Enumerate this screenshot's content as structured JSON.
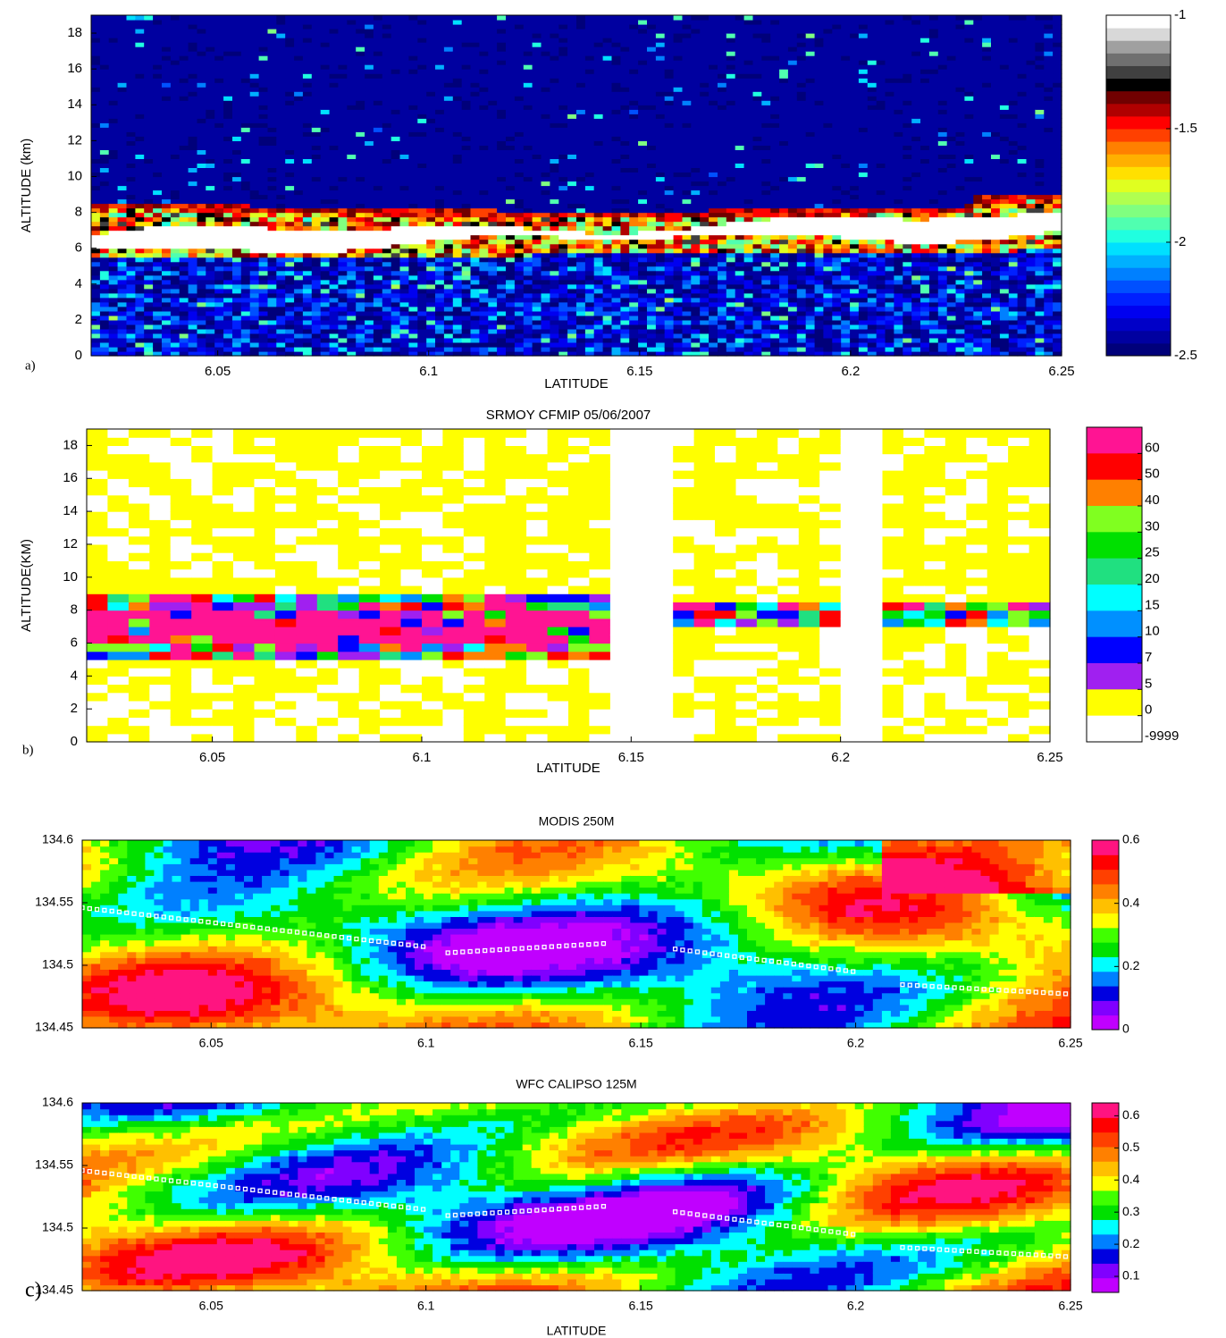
{
  "chart_data": [
    {
      "type": "heatmap",
      "panel_label": "a)",
      "xlabel": "LATITUDE",
      "ylabel": "ALTITUDE (km)",
      "xlim": [
        6.02,
        6.25
      ],
      "xticks": [
        6.05,
        6.1,
        6.15,
        6.2,
        6.25
      ],
      "ylim": [
        0,
        19
      ],
      "yticks": [
        0,
        2,
        4,
        6,
        8,
        10,
        12,
        14,
        16,
        18
      ],
      "colorbar": {
        "clim": [
          -2.5,
          -1
        ],
        "ticks": [
          -1,
          -1.5,
          -2,
          -2.5
        ],
        "colors": [
          "#00007a",
          "#0000a0",
          "#0000c8",
          "#0000f0",
          "#0020ff",
          "#0050ff",
          "#0080ff",
          "#00b0ff",
          "#00e0ff",
          "#20ffe0",
          "#50ffb0",
          "#80ff80",
          "#b0ff50",
          "#e0ff20",
          "#ffe000",
          "#ffb000",
          "#ff8000",
          "#ff4000",
          "#ff0000",
          "#b00000",
          "#700000",
          "#000000",
          "#404040",
          "#707070",
          "#a0a0a0",
          "#d8d8d8",
          "#ffffff"
        ]
      }
    },
    {
      "type": "heatmap",
      "title": "SRMOY CFMIP 05/06/2007",
      "panel_label": "b)",
      "xlabel": "LATITUDE",
      "ylabel": "ALTITUDE(KM)",
      "xlim": [
        6.02,
        6.25
      ],
      "xticks": [
        6.05,
        6.1,
        6.15,
        6.2,
        6.25
      ],
      "ylim": [
        0,
        19
      ],
      "yticks": [
        0,
        2,
        4,
        6,
        8,
        10,
        12,
        14,
        16,
        18
      ],
      "colorbar": {
        "levels": [
          60,
          50,
          40,
          30,
          25,
          20,
          15,
          10,
          7,
          5,
          0,
          -9999
        ],
        "colors": [
          "#ff1493",
          "#ff0000",
          "#ff8000",
          "#80ff20",
          "#00e000",
          "#20e080",
          "#00ffff",
          "#0090ff",
          "#0000ff",
          "#a020f0",
          "#ffff00",
          "#ffffff"
        ]
      }
    },
    {
      "type": "heatmap",
      "title": "MODIS 250M",
      "xlim": [
        6.02,
        6.25
      ],
      "xticks": [
        6.05,
        6.1,
        6.15,
        6.2,
        6.25
      ],
      "ylim": [
        134.45,
        134.6
      ],
      "yticks": [
        134.45,
        134.5,
        134.55,
        134.6
      ],
      "colorbar": {
        "clim": [
          0,
          0.6
        ],
        "ticks": [
          0,
          0.2,
          0.4,
          0.6
        ],
        "colors": [
          "#c000ff",
          "#8000ff",
          "#0000e0",
          "#0080ff",
          "#00ffff",
          "#00e000",
          "#40ff00",
          "#ffff00",
          "#ffc000",
          "#ff8000",
          "#ff4000",
          "#ff0000",
          "#ff1480"
        ]
      }
    },
    {
      "type": "heatmap",
      "title": "WFC CALIPSO 125M",
      "panel_label": "c)",
      "xlabel": "LATITUDE",
      "xlim": [
        6.02,
        6.25
      ],
      "xticks": [
        6.05,
        6.1,
        6.15,
        6.2,
        6.25
      ],
      "ylim": [
        134.45,
        134.6
      ],
      "yticks": [
        134.45,
        134.5,
        134.55,
        134.6
      ],
      "colorbar": {
        "clim": [
          0.05,
          0.64
        ],
        "ticks": [
          0.1,
          0.2,
          0.3,
          0.4,
          0.5,
          0.6
        ],
        "colors": [
          "#c000ff",
          "#8000ff",
          "#0000e0",
          "#0080ff",
          "#00ffff",
          "#00e000",
          "#40ff00",
          "#ffff00",
          "#ffc000",
          "#ff8000",
          "#ff4000",
          "#ff0000",
          "#ff1480"
        ]
      }
    }
  ]
}
